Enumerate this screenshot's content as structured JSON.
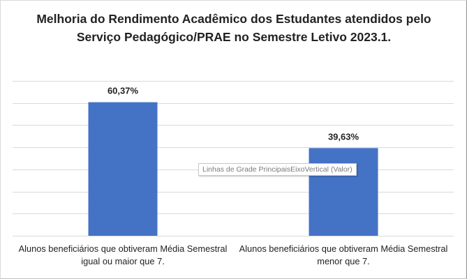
{
  "chart_data": {
    "type": "bar",
    "title": "Melhoria do Rendimento Acadêmico dos Estudantes atendidos pelo Serviço Pedagógico/PRAE no Semestre Letivo 2023.1.",
    "categories": [
      "Alunos beneficiários que obtiveram Média Semestral igual ou maior que 7.",
      "Alunos beneficiários que obtiveram Média Semestral menor que 7."
    ],
    "values": [
      60.37,
      39.63
    ],
    "data_labels": [
      "60,37%",
      "39,63%"
    ],
    "ylim": [
      0,
      70
    ],
    "grid": true,
    "bar_color": "#4472c4",
    "grid_color": "#d9d9d9"
  },
  "tooltip": "Linhas de Grade PrincipaisEixoVertical (Valor)"
}
